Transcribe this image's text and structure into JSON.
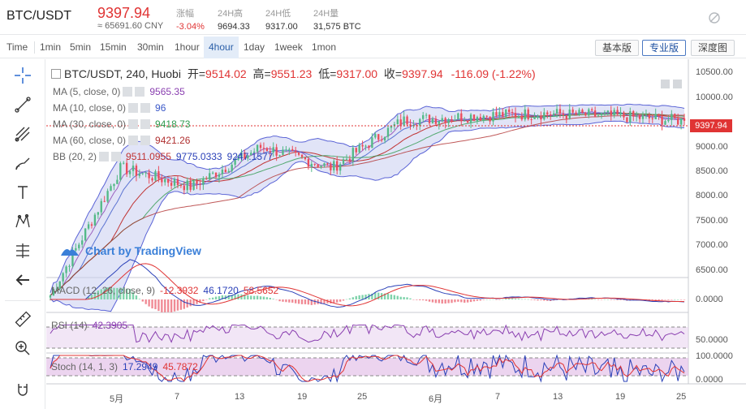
{
  "header": {
    "pair": "BTC/USDT",
    "price": "9397.94",
    "cny": "≈ 65691.60 CNY",
    "stats": [
      {
        "label": "涨幅",
        "value": "-3.04%"
      },
      {
        "label": "24H高",
        "value": "9694.33"
      },
      {
        "label": "24H低",
        "value": "9317.00"
      },
      {
        "label": "24H量",
        "value": "31,575 BTC"
      }
    ]
  },
  "toolbar": {
    "timeframes": [
      "Time",
      "1min",
      "5min",
      "15min",
      "30min",
      "1hour",
      "4hour",
      "1day",
      "1week",
      "1mon"
    ],
    "active_timeframe": "4hour",
    "views": [
      "基本版",
      "专业版",
      "深度图"
    ],
    "active_view": "专业版"
  },
  "drawing_tools": [
    "crosshair-icon",
    "trendline-icon",
    "pitchfork-icon",
    "brush-icon",
    "text-icon",
    "pattern-icon",
    "measure-icon",
    "back-icon",
    "ruler-icon",
    "zoom-in-icon",
    "magnet-icon"
  ],
  "chart": {
    "title": "BTC/USDT, 240, Huobi",
    "open_label": "开=",
    "open": "9514.02",
    "high_label": "高=",
    "high": "9551.23",
    "low_label": "低=",
    "low": "9317.00",
    "close_label": "收=",
    "close": "9397.94",
    "change": "-116.09 (-1.22%)",
    "current_price_label": "9397.94",
    "watermark": "Chart by TradingView",
    "indicators": [
      {
        "label": "MA (5, close, 0)",
        "values": [
          "9565.35"
        ]
      },
      {
        "label": "MA (10, close, 0)",
        "values": [
          "96"
        ]
      },
      {
        "label": "MA (30, close, 0)",
        "values": [
          "9418.73"
        ]
      },
      {
        "label": "MA (60, close, 0)",
        "values": [
          "9421.26"
        ]
      },
      {
        "label": "BB (20, 2)",
        "values": [
          "9511.0955",
          "9775.0333",
          "9247.1577"
        ]
      }
    ],
    "price_ticks": [
      "10500.00",
      "10000.00",
      "9500.00",
      "9000.00",
      "8500.00",
      "8000.00",
      "7500.00",
      "7000.00",
      "6500.00"
    ],
    "macd": {
      "label": "MACD (12, 26, close, 9)",
      "values": [
        "-12.3932",
        "46.1720",
        "58.5652"
      ],
      "ticks": [
        "0.0000"
      ]
    },
    "rsi": {
      "label": "RSI (14)",
      "values": [
        "42.3905"
      ],
      "ticks": [
        "50.0000"
      ]
    },
    "stoch": {
      "label": "Stoch (14, 1, 3)",
      "values": [
        "17.2949",
        "45.7872"
      ],
      "ticks": [
        "100.0000",
        "0.0000"
      ]
    },
    "date_ticks": [
      "5月",
      "7",
      "13",
      "19",
      "25",
      "6月",
      "7",
      "13",
      "19",
      "25"
    ]
  },
  "colors": {
    "up": "#53b987",
    "down": "#eb4d5c",
    "bb_fill": "#c8cdf0",
    "bb_line": "#5a63d6",
    "accent_red": "#e03434",
    "active_blue": "#2b5fa8"
  },
  "chart_data": {
    "type": "line",
    "title": "BTC/USDT, 240, Huobi",
    "x": [
      "5月",
      "7",
      "13",
      "19",
      "25",
      "6月",
      "7",
      "13",
      "19",
      "25"
    ],
    "series": [
      {
        "name": "BTC/USDT",
        "values": [
          5700,
          8400,
          8000,
          8850,
          8400,
          9400,
          9500,
          9550,
          9500,
          9397.94
        ]
      }
    ],
    "ylim": [
      6200,
      10700
    ],
    "xlabel": "",
    "ylabel": ""
  }
}
